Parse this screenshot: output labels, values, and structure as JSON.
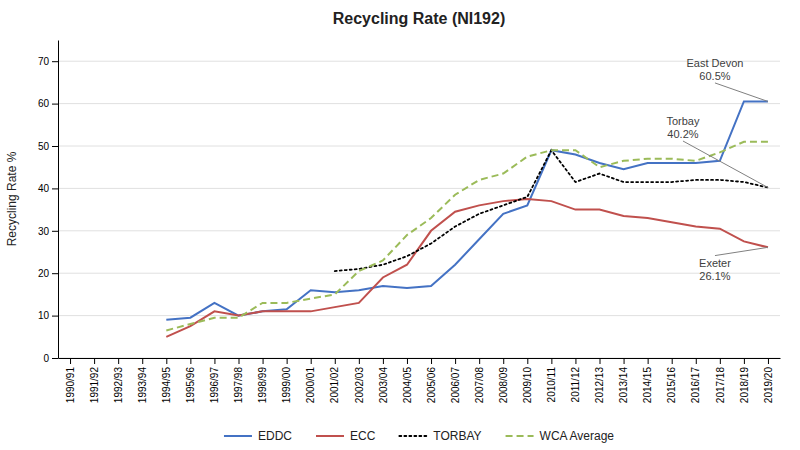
{
  "chart_data": {
    "type": "line",
    "title": "Recycling Rate (NI192)",
    "y_label": "Recycling Rate %",
    "categories": [
      "1990/91",
      "1991/92",
      "1992/93",
      "1993/94",
      "1994/95",
      "1995/96",
      "1996/97",
      "1997/98",
      "1998/99",
      "1999/00",
      "2000/01",
      "2001/02",
      "2002/03",
      "2003/04",
      "2004/05",
      "2005/06",
      "2006/07",
      "2007/08",
      "2008/09",
      "2009/10",
      "2010/11",
      "2011/12",
      "2012/13",
      "2013/14",
      "2014/15",
      "2015/16",
      "2016/17",
      "2017/18",
      "2018/19",
      "2019/20"
    ],
    "series": [
      {
        "name": "EDDC",
        "color": "#4472C4",
        "line_style": "solid",
        "values": [
          null,
          null,
          null,
          null,
          9.0,
          9.5,
          13.0,
          10.0,
          11.0,
          11.5,
          16.0,
          15.5,
          16.0,
          17.0,
          16.5,
          17.0,
          22.0,
          28.0,
          34.0,
          36.0,
          49.0,
          48.0,
          46.0,
          44.5,
          46.0,
          46.0,
          46.0,
          46.5,
          60.5,
          60.5
        ]
      },
      {
        "name": "ECC",
        "color": "#C0504D",
        "line_style": "solid",
        "values": [
          null,
          null,
          null,
          null,
          5.0,
          7.5,
          11.0,
          10.0,
          11.0,
          11.0,
          11.0,
          12.0,
          13.0,
          19.0,
          22.0,
          30.0,
          34.5,
          36.0,
          37.0,
          37.5,
          37.0,
          35.0,
          35.0,
          33.5,
          33.0,
          32.0,
          31.0,
          30.5,
          27.5,
          26.1
        ]
      },
      {
        "name": "TORBAY",
        "color": "#000000",
        "line_style": "dotted",
        "values": [
          null,
          null,
          null,
          null,
          null,
          null,
          null,
          null,
          null,
          null,
          null,
          20.5,
          21.0,
          22.0,
          24.0,
          27.0,
          31.0,
          34.0,
          36.0,
          38.0,
          49.0,
          41.5,
          43.5,
          41.5,
          41.5,
          41.5,
          42.0,
          42.0,
          41.5,
          40.2
        ]
      },
      {
        "name": "WCA Average",
        "color": "#9BBB59",
        "line_style": "dashed",
        "values": [
          null,
          null,
          null,
          null,
          6.5,
          8.0,
          9.5,
          9.5,
          13.0,
          13.0,
          14.0,
          15.0,
          20.5,
          23.0,
          29.0,
          33.0,
          38.5,
          42.0,
          43.5,
          47.5,
          49.0,
          49.0,
          45.0,
          46.5,
          47.0,
          47.0,
          46.5,
          48.5,
          51.0,
          51.0
        ]
      }
    ],
    "ylim": [
      0,
      75
    ],
    "yticks": [
      0,
      10,
      20,
      30,
      40,
      50,
      60,
      70
    ],
    "grid": true,
    "legend": "bottom",
    "annotations": [
      {
        "text": "East Devon\n60.5%",
        "x": "2019/20",
        "y": 60.5
      },
      {
        "text": "Torbay\n40.2%",
        "x": "2019/20",
        "y": 40.2
      },
      {
        "text": "Exeter\n26.1%",
        "x": "2019/20",
        "y": 26.1
      }
    ]
  }
}
